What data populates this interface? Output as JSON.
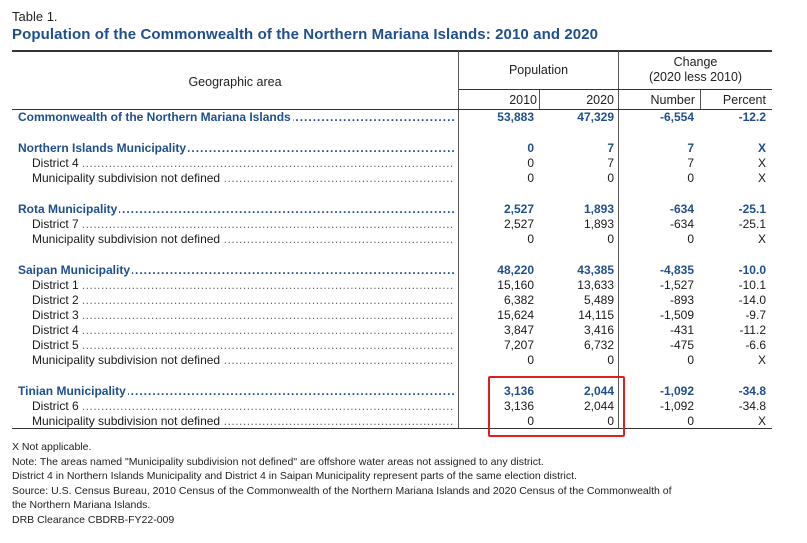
{
  "table_label": "Table 1.",
  "title": "Population of the Commonwealth of the Northern Mariana Islands: 2010 and 2020",
  "headers": {
    "geo": "Geographic area",
    "population": "Population",
    "change_line1": "Change",
    "change_line2": "(2020 less 2010)",
    "y2010": "2010",
    "y2020": "2020",
    "number": "Number",
    "percent": "Percent"
  },
  "rows": [
    {
      "name": "Commonwealth of the Northern Mariana Islands",
      "bold": true,
      "v2010": "53,883",
      "v2020": "47,329",
      "number": "-6,554",
      "percent": "-12.2"
    },
    {
      "name": "Northern Islands Municipality",
      "bold": true,
      "v2010": "0",
      "v2020": "7",
      "number": "7",
      "percent": "X"
    },
    {
      "name": "District 4",
      "bold": false,
      "v2010": "0",
      "v2020": "7",
      "number": "7",
      "percent": "X"
    },
    {
      "name": "Municipality subdivision not defined",
      "bold": false,
      "v2010": "0",
      "v2020": "0",
      "number": "0",
      "percent": "X"
    },
    {
      "name": "Rota Municipality",
      "bold": true,
      "v2010": "2,527",
      "v2020": "1,893",
      "number": "-634",
      "percent": "-25.1"
    },
    {
      "name": "District 7",
      "bold": false,
      "v2010": "2,527",
      "v2020": "1,893",
      "number": "-634",
      "percent": "-25.1"
    },
    {
      "name": "Municipality subdivision not defined",
      "bold": false,
      "v2010": "0",
      "v2020": "0",
      "number": "0",
      "percent": "X"
    },
    {
      "name": "Saipan Municipality",
      "bold": true,
      "v2010": "48,220",
      "v2020": "43,385",
      "number": "-4,835",
      "percent": "-10.0"
    },
    {
      "name": "District 1",
      "bold": false,
      "v2010": "15,160",
      "v2020": "13,633",
      "number": "-1,527",
      "percent": "-10.1"
    },
    {
      "name": "District 2",
      "bold": false,
      "v2010": "6,382",
      "v2020": "5,489",
      "number": "-893",
      "percent": "-14.0"
    },
    {
      "name": "District 3",
      "bold": false,
      "v2010": "15,624",
      "v2020": "14,115",
      "number": "-1,509",
      "percent": "-9.7"
    },
    {
      "name": "District 4",
      "bold": false,
      "v2010": "3,847",
      "v2020": "3,416",
      "number": "-431",
      "percent": "-11.2"
    },
    {
      "name": "District 5",
      "bold": false,
      "v2010": "7,207",
      "v2020": "6,732",
      "number": "-475",
      "percent": "-6.6"
    },
    {
      "name": "Municipality subdivision not defined",
      "bold": false,
      "v2010": "0",
      "v2020": "0",
      "number": "0",
      "percent": "X"
    },
    {
      "name": "Tinian Municipality",
      "bold": true,
      "v2010": "3,136",
      "v2020": "2,044",
      "number": "-1,092",
      "percent": "-34.8"
    },
    {
      "name": "District 6",
      "bold": false,
      "v2010": "3,136",
      "v2020": "2,044",
      "number": "-1,092",
      "percent": "-34.8"
    },
    {
      "name": "Municipality subdivision not defined",
      "bold": false,
      "v2010": "0",
      "v2020": "0",
      "number": "0",
      "percent": "X"
    }
  ],
  "notes": [
    "X  Not applicable.",
    "Note: The areas named \"Municipality subdivision not defined\" are offshore water areas not assigned to any district.",
    "District 4 in Northern Islands Municipality and District 4 in Saipan Municipality represent parts of the same election district.",
    "Source: U.S. Census Bureau, 2010 Census of the Commonwealth of the Northern Mariana Islands and 2020 Census of the Commonwealth of",
    "the Northern Mariana Islands.",
    "DRB Clearance CBDRB-FY22-009"
  ],
  "highlight_color": "#e02020",
  "title_color": "#1f4f8f"
}
